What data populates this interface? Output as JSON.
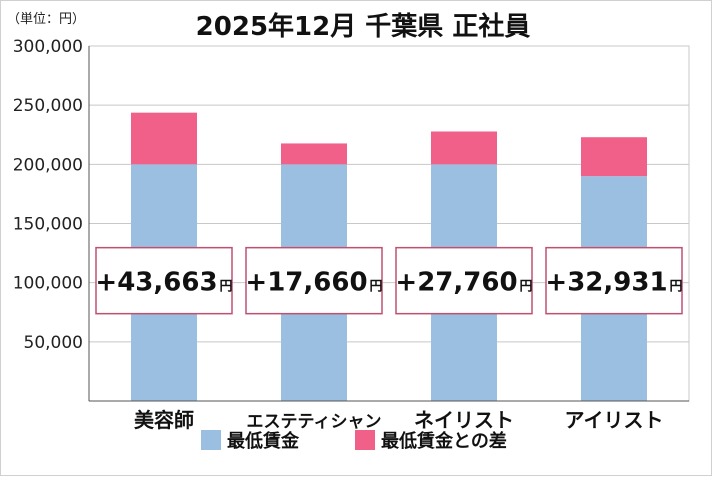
{
  "chart_data": {
    "type": "bar",
    "stacked": true,
    "title": "2025年12月 千葉県 正社員",
    "unit_label": "（単位：円）",
    "categories": [
      "美容師",
      "エステティシャン",
      "ネイリスト",
      "アイリスト"
    ],
    "series": [
      {
        "name": "最低賃金",
        "color": "#9bbfe0",
        "values": [
          200000,
          200000,
          200000,
          190000
        ]
      },
      {
        "name": "最低賃金との差",
        "color": "#f06089",
        "values": [
          43663,
          17660,
          27760,
          32931
        ]
      }
    ],
    "difference_labels": [
      "+43,663",
      "+17,660",
      "+27,760",
      "+32,931"
    ],
    "difference_unit": "円",
    "ylim": [
      0,
      300000
    ],
    "yticks": [
      50000,
      100000,
      150000,
      200000,
      250000,
      300000
    ],
    "ytick_labels": [
      "50,000",
      "100,000",
      "150,000",
      "200,000",
      "250,000",
      "300,000"
    ],
    "grid": true,
    "legend_position": "bottom",
    "colors": {
      "label_box_border": "#c05070",
      "grid": "#c8c8c8",
      "axis": "#555555",
      "text": "#111111"
    }
  }
}
